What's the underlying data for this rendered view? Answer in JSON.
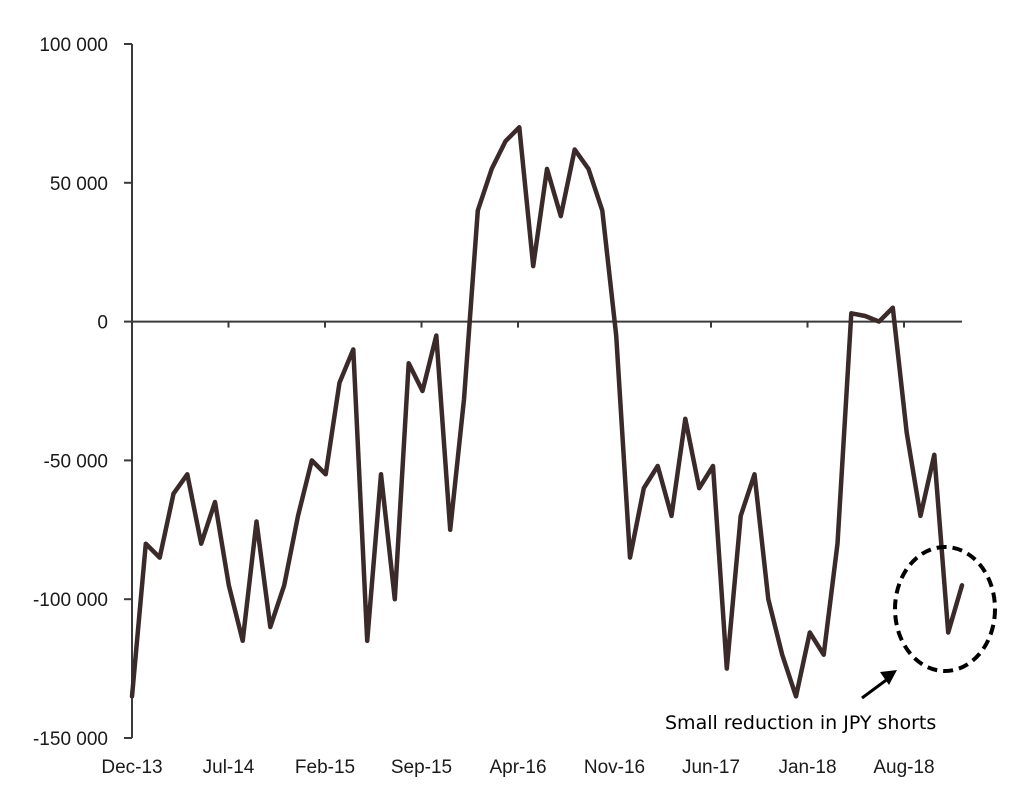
{
  "chart_data": {
    "type": "line",
    "title": "",
    "xlabel": "",
    "ylabel": "",
    "ylim": [
      -150000,
      100000
    ],
    "y_ticks": [
      {
        "value": 100000,
        "label": "100 000"
      },
      {
        "value": 50000,
        "label": "50 000"
      },
      {
        "value": 0,
        "label": "0"
      },
      {
        "value": -50000,
        "label": "-50 000"
      },
      {
        "value": -100000,
        "label": "-100 000"
      },
      {
        "value": -150000,
        "label": "-150 000"
      }
    ],
    "x_ticks": [
      "Dec-13",
      "Jul-14",
      "Feb-15",
      "Sep-15",
      "Apr-16",
      "Nov-16",
      "Jun-17",
      "Jan-18",
      "Aug-18"
    ],
    "x_range": [
      "2013-12",
      "2018-12"
    ],
    "grid": false,
    "legend": "none",
    "line_color": "#3a2a2a",
    "series": [
      {
        "x": [
          "2013-12",
          "2014-01",
          "2014-02",
          "2014-03",
          "2014-04",
          "2014-05",
          "2014-06",
          "2014-07",
          "2014-08",
          "2014-09",
          "2014-10",
          "2014-11",
          "2014-12",
          "2015-01",
          "2015-02",
          "2015-03",
          "2015-04",
          "2015-05",
          "2015-06",
          "2015-07",
          "2015-08",
          "2015-09",
          "2015-10",
          "2015-11",
          "2015-12",
          "2016-01",
          "2016-02",
          "2016-03",
          "2016-04",
          "2016-05",
          "2016-06",
          "2016-07",
          "2016-08",
          "2016-09",
          "2016-10",
          "2016-11",
          "2016-12",
          "2017-01",
          "2017-02",
          "2017-03",
          "2017-04",
          "2017-05",
          "2017-06",
          "2017-07",
          "2017-08",
          "2017-09",
          "2017-10",
          "2017-11",
          "2017-12",
          "2018-01",
          "2018-02",
          "2018-03",
          "2018-04",
          "2018-05",
          "2018-06",
          "2018-07",
          "2018-08",
          "2018-09",
          "2018-10",
          "2018-11",
          "2018-12"
        ],
        "values": [
          -135000,
          -80000,
          -85000,
          -62000,
          -55000,
          -80000,
          -65000,
          -95000,
          -115000,
          -72000,
          -110000,
          -95000,
          -70000,
          -50000,
          -55000,
          -22000,
          -10000,
          -115000,
          -55000,
          -100000,
          -15000,
          -25000,
          -5000,
          -75000,
          -28000,
          40000,
          55000,
          65000,
          70000,
          20000,
          55000,
          38000,
          62000,
          55000,
          40000,
          -5000,
          -85000,
          -60000,
          -52000,
          -70000,
          -35000,
          -60000,
          -52000,
          -125000,
          -70000,
          -55000,
          -100000,
          -120000,
          -135000,
          -112000,
          -120000,
          -80000,
          3000,
          2000,
          0,
          5000,
          -40000,
          -70000,
          -48000,
          -112000,
          -95000
        ]
      }
    ],
    "annotation": {
      "text": "Small reduction in JPY shorts"
    }
  }
}
